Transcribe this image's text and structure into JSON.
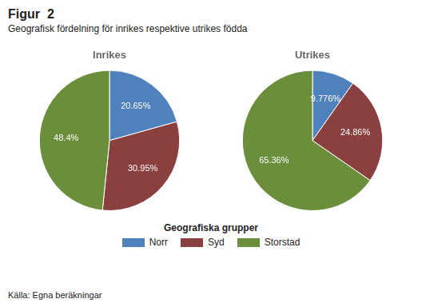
{
  "chart_data": {
    "type": "pie",
    "title": "Figur  2",
    "subtitle": "Geografisk fördelning för inrikes respektive utrikes födda",
    "categories": [
      "Norr",
      "Syd",
      "Storstad"
    ],
    "colors": [
      "#4f81bd",
      "#8b4040",
      "#6b8e3a"
    ],
    "series": [
      {
        "name": "Inrikes",
        "values": [
          20.65,
          30.95,
          48.4
        ],
        "value_labels": [
          "20.65%",
          "30.95%",
          "48.4%"
        ]
      },
      {
        "name": "Utrikes",
        "values": [
          9.776,
          24.86,
          65.36
        ],
        "value_labels": [
          "9.776%",
          "24.86%",
          "65.36%"
        ]
      }
    ],
    "data_labels": true,
    "legend": "bottom",
    "legend_title": "Geografiska grupper",
    "source": "Källa: Egna beräkningar"
  }
}
